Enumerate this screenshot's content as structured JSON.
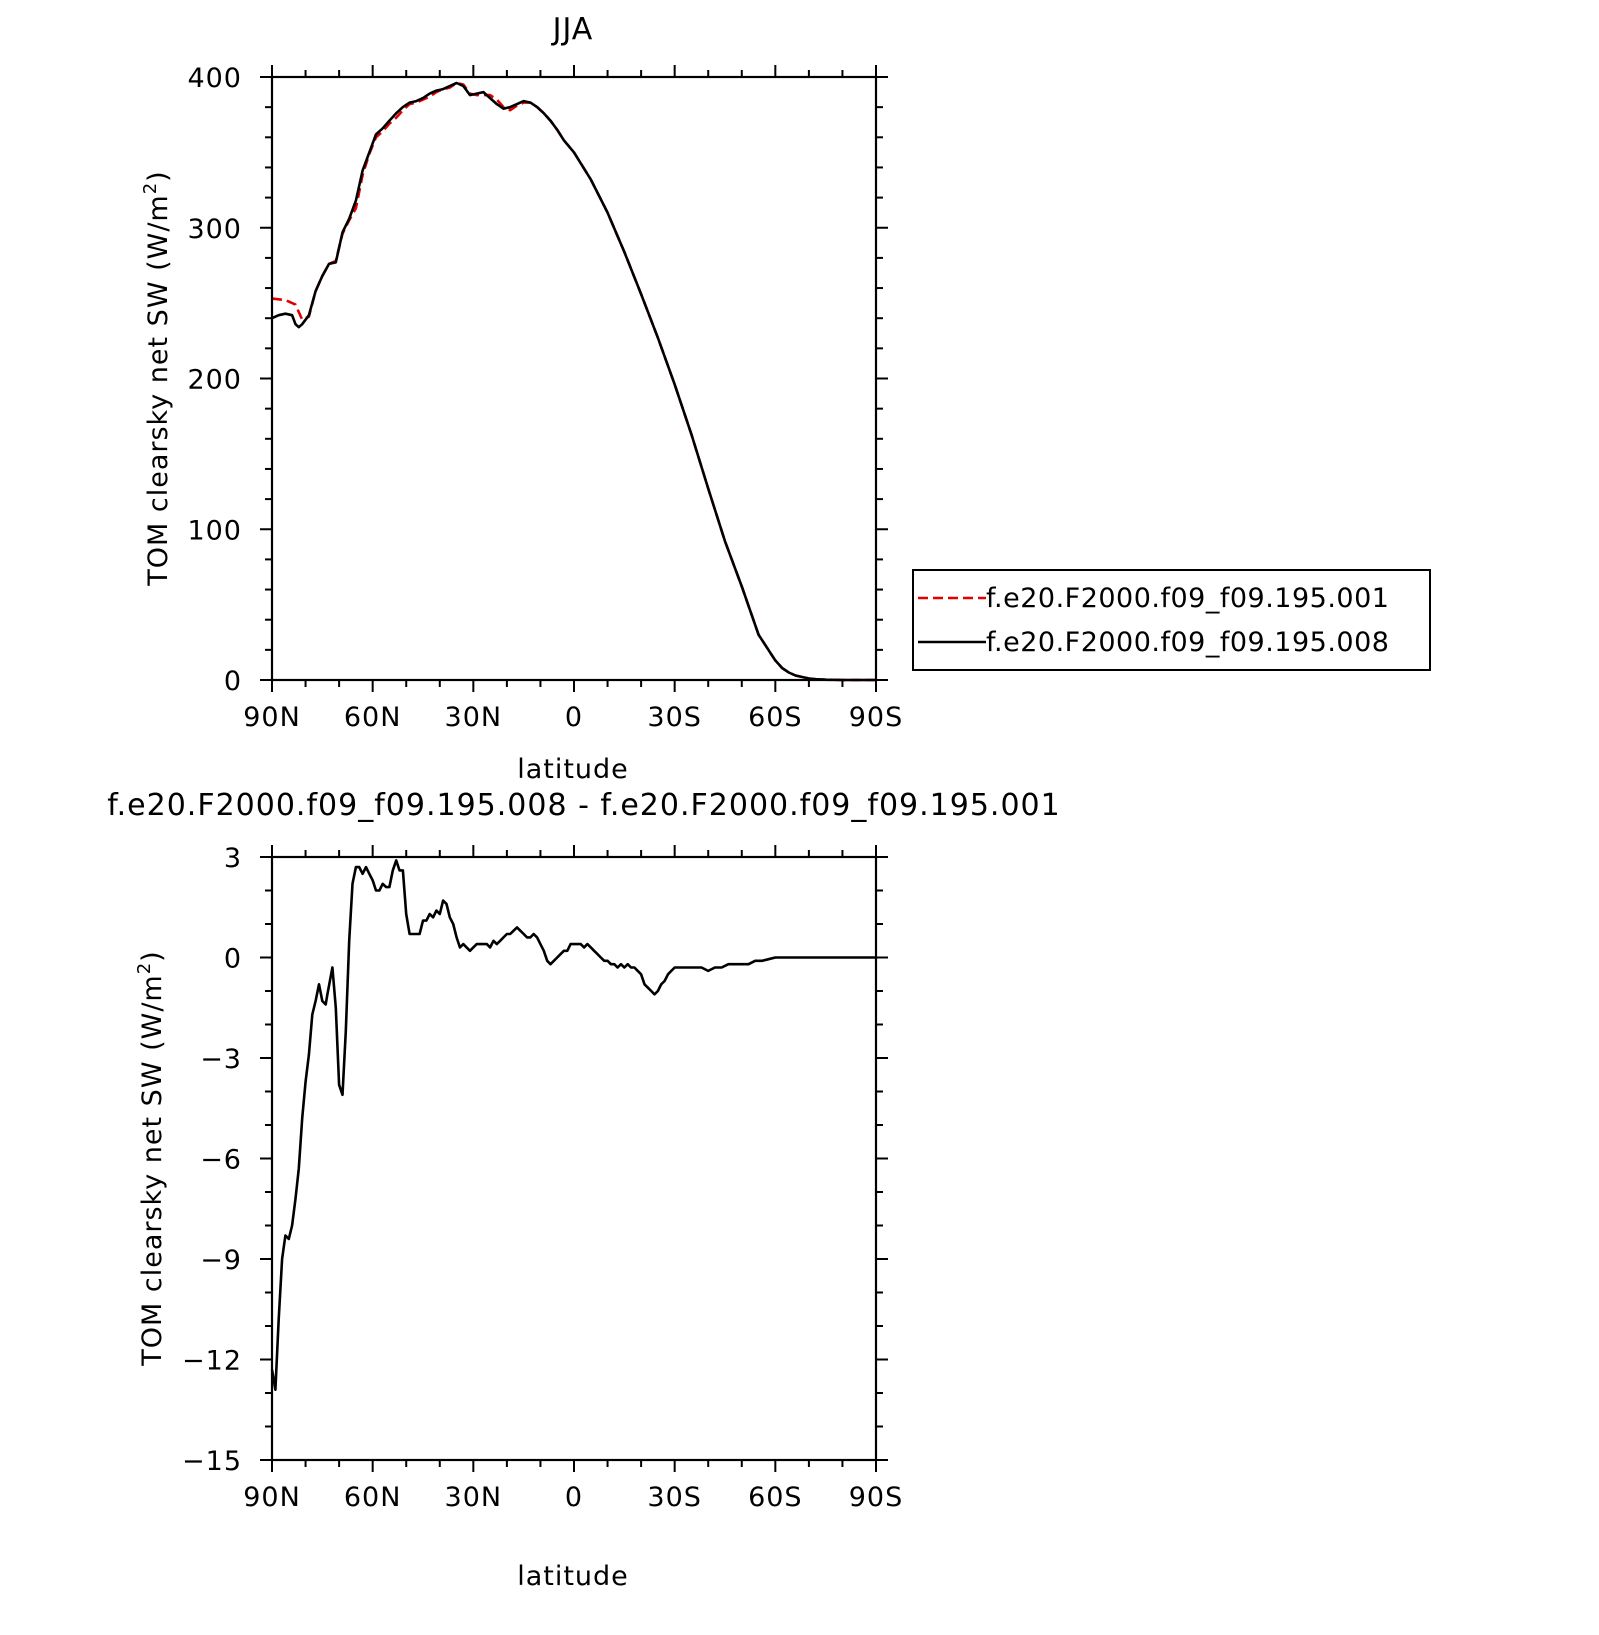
{
  "chart_data": [
    {
      "type": "line",
      "title": "JJA",
      "xlabel": "latitude",
      "ylabel": "TOM clearsky net SW (W/m²)",
      "x_ticks": [
        90,
        60,
        30,
        0,
        -30,
        -60,
        -90
      ],
      "x_tick_labels": [
        "90N",
        "60N",
        "30N",
        "0",
        "30S",
        "60S",
        "90S"
      ],
      "xlim": [
        90,
        -90
      ],
      "ylim": [
        0,
        400
      ],
      "y_ticks": [
        0,
        100,
        200,
        300,
        400
      ],
      "y_tick_labels": [
        "0",
        "100",
        "200",
        "300",
        "400"
      ],
      "grid": false,
      "legend_position": "right",
      "series": [
        {
          "name": "f.e20.F2000.f09_f09.195.001",
          "color": "#e00000",
          "dash": "dashed",
          "x": [
            90,
            86,
            83,
            81,
            79,
            77,
            75,
            73,
            71,
            69,
            67,
            65,
            63,
            61,
            59,
            57,
            55,
            53,
            51,
            49,
            47,
            45,
            43,
            41,
            39,
            37,
            35,
            33,
            31,
            29,
            27,
            25,
            23,
            21,
            19,
            17,
            15,
            13,
            11,
            9,
            7,
            5,
            3,
            0,
            -5,
            -10,
            -15,
            -20,
            -25,
            -30,
            -35,
            -40,
            -45,
            -50,
            -55,
            -60,
            -62,
            -64,
            -66,
            -68,
            -70,
            -72,
            -75,
            -80,
            -85,
            -90
          ],
          "y": [
            253,
            252,
            249,
            239,
            241,
            258,
            268,
            276,
            278,
            296,
            305,
            313,
            335,
            349,
            360,
            364,
            369,
            373,
            378,
            382,
            383,
            385,
            387,
            390,
            392,
            393,
            396,
            395,
            389,
            388,
            388,
            388,
            385,
            380,
            378,
            381,
            383,
            383,
            380,
            376,
            371,
            365,
            358,
            350,
            332,
            310,
            284,
            256,
            227,
            196,
            163,
            127,
            92,
            62,
            30,
            13,
            8,
            5,
            3,
            2,
            1,
            0.5,
            0.2,
            0,
            0,
            0
          ]
        },
        {
          "name": "f.e20.F2000.f09_f09.195.008",
          "color": "#000000",
          "dash": "solid",
          "x": [
            90,
            88,
            86,
            84,
            83,
            82,
            81,
            79,
            77,
            75,
            73,
            71,
            69,
            67,
            65,
            63,
            61,
            59,
            57,
            55,
            53,
            51,
            49,
            47,
            45,
            43,
            41,
            39,
            37,
            35,
            33,
            31,
            29,
            27,
            25,
            23,
            21,
            19,
            17,
            15,
            13,
            11,
            9,
            7,
            5,
            3,
            0,
            -5,
            -10,
            -15,
            -20,
            -25,
            -30,
            -35,
            -40,
            -45,
            -50,
            -55,
            -60,
            -62,
            -64,
            -66,
            -68,
            -70,
            -72,
            -75,
            -80,
            -85,
            -90
          ],
          "y": [
            240,
            242,
            243,
            242,
            236,
            234,
            236,
            242,
            258,
            268,
            276,
            277,
            297,
            306,
            318,
            338,
            350,
            362,
            366,
            371,
            376,
            380,
            383,
            384,
            386,
            389,
            391,
            392,
            394,
            396,
            394,
            388,
            389,
            390,
            386,
            382,
            379,
            380,
            382,
            384,
            383,
            380,
            376,
            371,
            365,
            358,
            350,
            332,
            310,
            284,
            256,
            227,
            196,
            163,
            127,
            92,
            62,
            30,
            13,
            8,
            5,
            3,
            2,
            1,
            0.5,
            0.2,
            0,
            0,
            0
          ]
        }
      ]
    },
    {
      "type": "line",
      "title": "f.e20.F2000.f09_f09.195.008 - f.e20.F2000.f09_f09.195.001",
      "xlabel": "latitude",
      "ylabel": "TOM clearsky net SW (W/m²)",
      "x_ticks": [
        90,
        60,
        30,
        0,
        -30,
        -60,
        -90
      ],
      "x_tick_labels": [
        "90N",
        "60N",
        "30N",
        "0",
        "30S",
        "60S",
        "90S"
      ],
      "xlim": [
        90,
        -90
      ],
      "ylim": [
        -15,
        3
      ],
      "y_ticks": [
        -15,
        -12,
        -9,
        -6,
        -3,
        0,
        3
      ],
      "y_tick_labels": [
        "−15",
        "−12",
        "−9",
        "−6",
        "−3",
        "0",
        "3"
      ],
      "grid": false,
      "series": [
        {
          "color": "#000000",
          "dash": "solid",
          "x": [
            90,
            89,
            88,
            87,
            86,
            85,
            84,
            83,
            82,
            81,
            80,
            79,
            78,
            77,
            76,
            75,
            74,
            73.5,
            72,
            71,
            70,
            69,
            68,
            67,
            66,
            65,
            64,
            63,
            62,
            61,
            60,
            59,
            58,
            57,
            56,
            55,
            54,
            53,
            52,
            51,
            50,
            49,
            48,
            47,
            46,
            45,
            44,
            43,
            42,
            41,
            40,
            39,
            38,
            37,
            36,
            35,
            34,
            33,
            32,
            31,
            30,
            29,
            28,
            27,
            26,
            25,
            24,
            23,
            22,
            21,
            20,
            19,
            18,
            17,
            16,
            15,
            14,
            13,
            12,
            11,
            10,
            9,
            8,
            7,
            6,
            5,
            4,
            3,
            2,
            1,
            0,
            -1,
            -2,
            -3,
            -4,
            -5,
            -6,
            -7,
            -8,
            -9,
            -10,
            -11,
            -12,
            -13,
            -14,
            -15,
            -16,
            -17,
            -18,
            -19,
            -20,
            -21,
            -22,
            -23,
            -24,
            -25,
            -26,
            -27,
            -28,
            -29,
            -30,
            -32,
            -34,
            -36,
            -38,
            -40,
            -42,
            -44,
            -46,
            -48,
            -50,
            -52,
            -54,
            -56,
            -58,
            -60,
            -65,
            -70,
            -75,
            -80,
            -85,
            -90
          ],
          "x_precision_note": "",
          "y": [
            -12.3,
            -12.9,
            -10.8,
            -9.0,
            -8.3,
            -8.4,
            -8.0,
            -7.2,
            -6.3,
            -4.8,
            -3.7,
            -2.9,
            -1.7,
            -1.3,
            -0.8,
            -1.3,
            -1.4,
            -1.1,
            -0.3,
            -1.5,
            -3.8,
            -4.1,
            -2.2,
            0.5,
            2.2,
            2.7,
            2.7,
            2.5,
            2.7,
            2.5,
            2.3,
            2.0,
            2.0,
            2.2,
            2.1,
            2.1,
            2.6,
            2.9,
            2.6,
            2.6,
            1.3,
            0.7,
            0.7,
            0.7,
            0.7,
            1.1,
            1.1,
            1.3,
            1.2,
            1.4,
            1.3,
            1.7,
            1.6,
            1.2,
            1.0,
            0.6,
            0.3,
            0.4,
            0.3,
            0.2,
            0.3,
            0.4,
            0.4,
            0.4,
            0.4,
            0.3,
            0.5,
            0.4,
            0.5,
            0.6,
            0.7,
            0.7,
            0.8,
            0.9,
            0.8,
            0.7,
            0.6,
            0.6,
            0.7,
            0.6,
            0.4,
            0.2,
            -0.1,
            -0.2,
            -0.1,
            0.0,
            0.1,
            0.2,
            0.2,
            0.4,
            0.4,
            0.4,
            0.4,
            0.3,
            0.4,
            0.3,
            0.2,
            0.1,
            0.0,
            -0.1,
            -0.1,
            -0.2,
            -0.2,
            -0.3,
            -0.2,
            -0.3,
            -0.2,
            -0.3,
            -0.3,
            -0.4,
            -0.5,
            -0.8,
            -0.9,
            -1.0,
            -1.1,
            -1.0,
            -0.8,
            -0.7,
            -0.5,
            -0.4,
            -0.3,
            -0.3,
            -0.3,
            -0.3,
            -0.3,
            -0.4,
            -0.3,
            -0.3,
            -0.2,
            -0.2,
            -0.2,
            -0.2,
            -0.1,
            -0.1,
            -0.05,
            0,
            0,
            0,
            0,
            0,
            0,
            0
          ]
        }
      ]
    }
  ]
}
